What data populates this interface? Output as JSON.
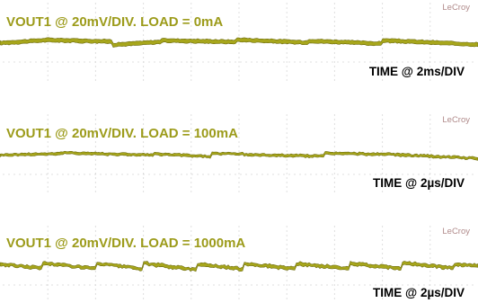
{
  "colors": {
    "trace_fill": "#a7a61b",
    "trace_edge": "#6b6a0f",
    "title_text": "#9c9b1a",
    "grid_dots": "#c8c8c8",
    "brand_text": "#b08a8a",
    "time_text": "#000000"
  },
  "chart_data": [
    {
      "type": "line",
      "title": "VOUT1 @ 20mV/DIV. LOAD = 0mA",
      "time_label": "TIME @ 2ms/DIV",
      "brand": "LeCroy",
      "x_divisions": 10,
      "y_unit": "mV (relative to DC level)",
      "y_range": [
        -40,
        40
      ],
      "segments": [
        {
          "from": 0.0,
          "to": 1.0,
          "start": -2,
          "end": 6
        },
        {
          "from": 1.0,
          "to": 2.35,
          "start": 6,
          "end": 2
        },
        {
          "from": 2.35,
          "to": 3.35,
          "start": -7,
          "end": 1
        },
        {
          "from": 3.35,
          "to": 4.95,
          "start": 5,
          "end": 1
        },
        {
          "from": 4.95,
          "to": 6.45,
          "start": 7,
          "end": -1
        },
        {
          "from": 6.45,
          "to": 8.0,
          "start": 4,
          "end": -4
        },
        {
          "from": 8.0,
          "to": 10.0,
          "start": 5,
          "end": -6
        }
      ],
      "band_halfwidth_mv": 4.5,
      "noise_mv": 1.2
    },
    {
      "type": "line",
      "title": "VOUT1 @ 20mV/DIV. LOAD = 100mA",
      "time_label": "TIME @ 2µs/DIV",
      "brand": "LeCroy",
      "x_divisions": 10,
      "y_unit": "mV (relative to DC level)",
      "y_range": [
        -40,
        40
      ],
      "segments": [
        {
          "from": 0.0,
          "to": 1.3,
          "start": -1,
          "end": 3
        },
        {
          "from": 1.3,
          "to": 3.2,
          "start": 5,
          "end": -1
        },
        {
          "from": 3.2,
          "to": 4.4,
          "start": 2,
          "end": -5
        },
        {
          "from": 4.4,
          "to": 5.1,
          "start": 3,
          "end": 2
        },
        {
          "from": 5.1,
          "to": 6.8,
          "start": 0,
          "end": -4
        },
        {
          "from": 6.8,
          "to": 7.9,
          "start": 4,
          "end": 1
        },
        {
          "from": 7.9,
          "to": 10.0,
          "start": 2,
          "end": -10
        }
      ],
      "band_halfwidth_mv": 2.5,
      "noise_mv": 1.6
    },
    {
      "type": "line",
      "title": "VOUT1 @ 20mV/DIV. LOAD = 1000mA",
      "time_label": "TIME @ 2µs/DIV",
      "brand": "LeCroy",
      "x_divisions": 10,
      "y_unit": "mV (relative to DC level)",
      "y_range": [
        -40,
        40
      ],
      "segments": [
        {
          "from": 0.0,
          "to": 0.9,
          "start": 3,
          "end": -8
        },
        {
          "from": 0.9,
          "to": 2.0,
          "start": 6,
          "end": -9
        },
        {
          "from": 2.0,
          "to": 3.0,
          "start": 5,
          "end": -10
        },
        {
          "from": 3.0,
          "to": 4.1,
          "start": 5,
          "end": -12
        },
        {
          "from": 4.1,
          "to": 5.1,
          "start": 4,
          "end": -11
        },
        {
          "from": 5.1,
          "to": 6.2,
          "start": 5,
          "end": -10
        },
        {
          "from": 6.2,
          "to": 7.3,
          "start": 4,
          "end": -9
        },
        {
          "from": 7.3,
          "to": 8.4,
          "start": 5,
          "end": -8
        },
        {
          "from": 8.4,
          "to": 9.5,
          "start": 6,
          "end": -7
        },
        {
          "from": 9.5,
          "to": 10.0,
          "start": 2,
          "end": -2
        }
      ],
      "band_halfwidth_mv": 3,
      "noise_mv": 2.2
    }
  ]
}
